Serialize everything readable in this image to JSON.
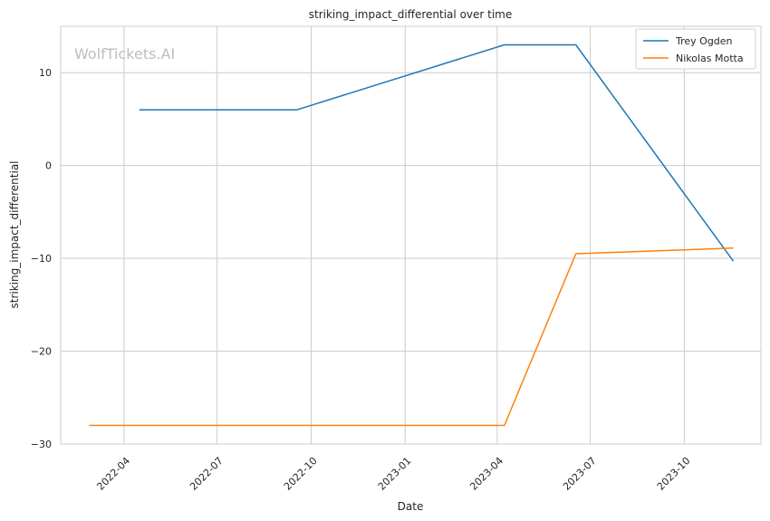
{
  "chart_data": {
    "type": "line",
    "title": "striking_impact_differential over time",
    "xlabel": "Date",
    "ylabel": "striking_impact_differential",
    "watermark": "WolfTickets.AI",
    "x_range": [
      "2022-01-29",
      "2023-12-15"
    ],
    "ylim": [
      -30,
      15
    ],
    "x_ticks": [
      "2022-04",
      "2022-07",
      "2022-10",
      "2023-01",
      "2023-04",
      "2023-07",
      "2023-10"
    ],
    "y_ticks": [
      10,
      0,
      -10,
      -20,
      -30
    ],
    "y_tick_labels": [
      "10",
      "0",
      "−10",
      "−20",
      "−30"
    ],
    "grid": true,
    "legend_position": "top-right",
    "series": [
      {
        "name": "Trey Ogden",
        "color": "#1f77b4",
        "points": [
          {
            "x": "2022-04-16",
            "y": 6
          },
          {
            "x": "2022-09-17",
            "y": 6
          },
          {
            "x": "2023-04-08",
            "y": 13
          },
          {
            "x": "2023-06-17",
            "y": 13
          },
          {
            "x": "2023-11-18",
            "y": -10.3
          }
        ]
      },
      {
        "name": "Nikolas Motta",
        "color": "#ff7f0e",
        "points": [
          {
            "x": "2022-02-26",
            "y": -28
          },
          {
            "x": "2023-04-08",
            "y": -28
          },
          {
            "x": "2023-06-17",
            "y": -9.5
          },
          {
            "x": "2023-11-18",
            "y": -8.9
          }
        ]
      }
    ]
  }
}
